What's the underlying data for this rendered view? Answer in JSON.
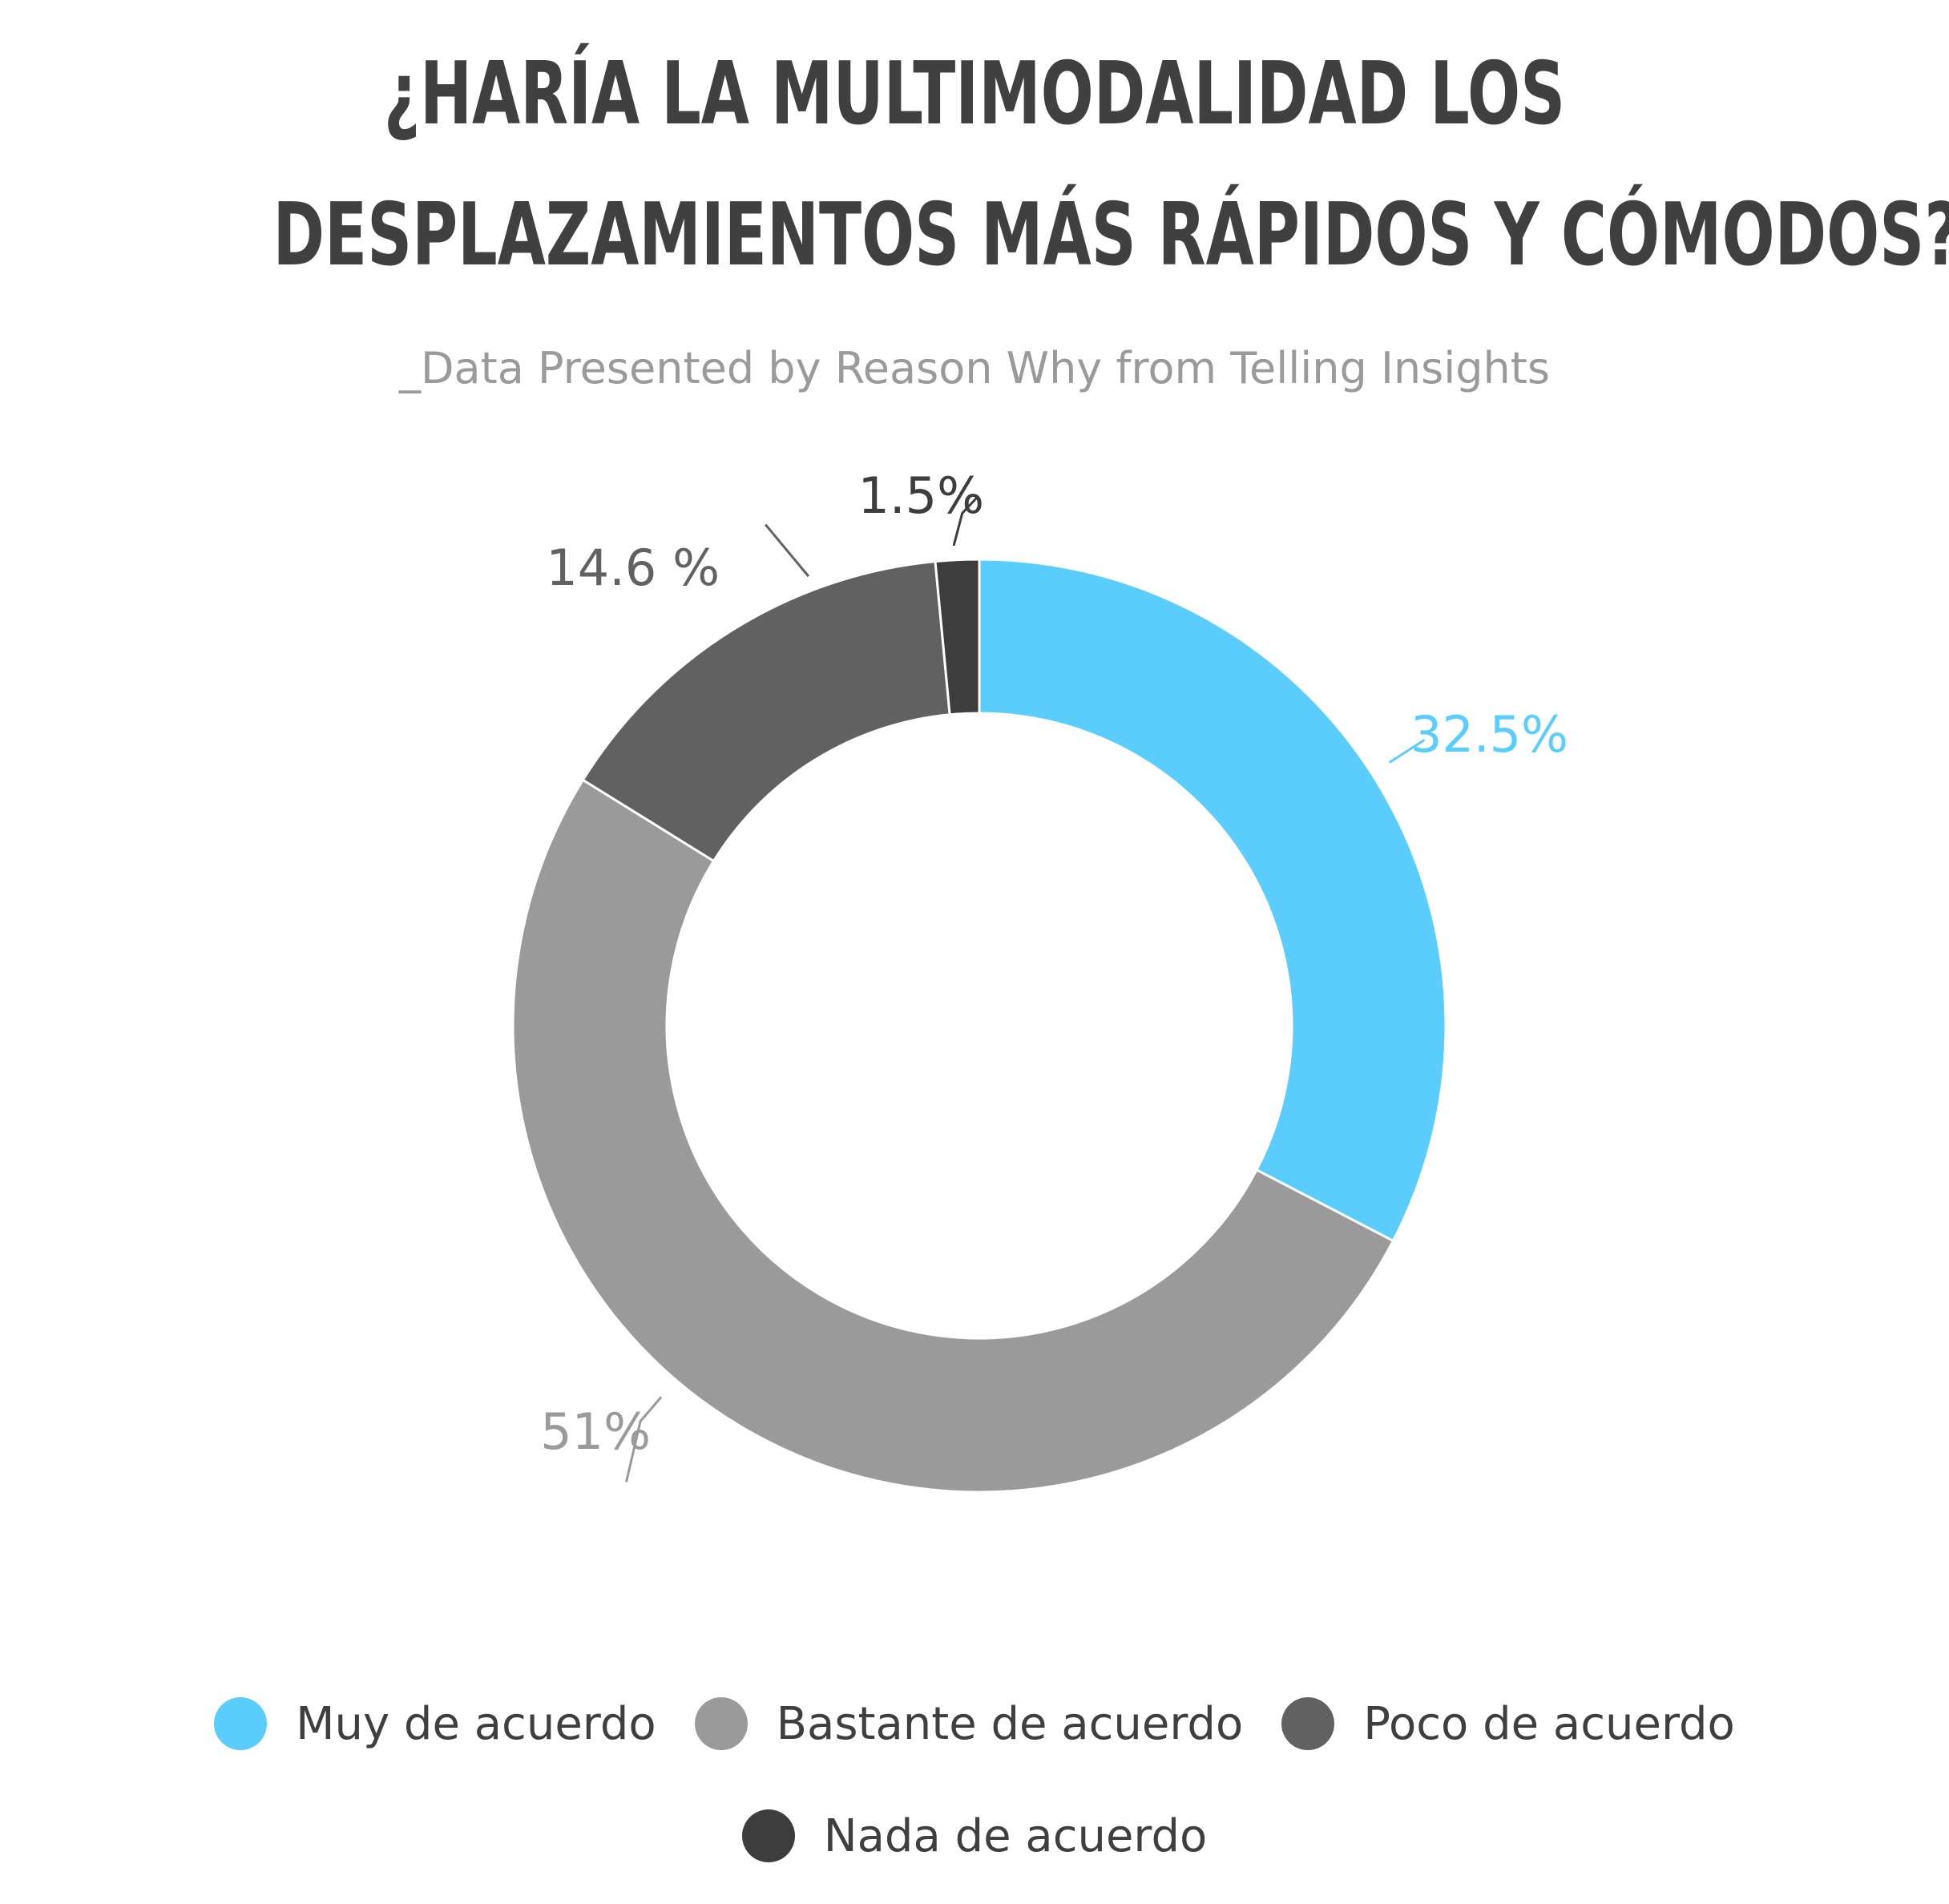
{
  "title_lines": [
    "¿HARÍA LA MULTIMODALIDAD LOS",
    "DESPLAZAMIENTOS MÁS RÁPIDOS Y CÓMODOS?"
  ],
  "subtitle": "_Data Presented by Reason Why from Telling Insights",
  "chart_data": {
    "type": "pie",
    "variant": "donut",
    "title": "¿HARÍA LA MULTIMODALIDAD LOS DESPLAZAMIENTOS MÁS RÁPIDOS Y CÓMODOS?",
    "subtitle": "_Data Presented by Reason Why from Telling Insights",
    "categories": [
      "Muy de acuerdo",
      "Bastante de acuerdo",
      "Poco de acuerdo",
      "Nada de acuerdo"
    ],
    "values": [
      32.5,
      51,
      14.6,
      1.5
    ],
    "data_labels": [
      "32.5%",
      "51%",
      "14.6 %",
      "1.5%"
    ],
    "colors": [
      "#5bcdfc",
      "#9a9a9a",
      "#616161",
      "#3d3d3d"
    ],
    "label_colors": [
      "#5bcdfc",
      "#9a9a9a",
      "#616161",
      "#3d3d3d"
    ],
    "start": "top",
    "direction": "clockwise",
    "legend_position": "bottom"
  },
  "legend": [
    {
      "label": "Muy de acuerdo",
      "color": "#5bcdfc"
    },
    {
      "label": "Bastante de acuerdo",
      "color": "#9a9a9a"
    },
    {
      "label": "Poco de acuerdo",
      "color": "#616161"
    },
    {
      "label": "Nada de acuerdo",
      "color": "#3d3d3d"
    }
  ]
}
